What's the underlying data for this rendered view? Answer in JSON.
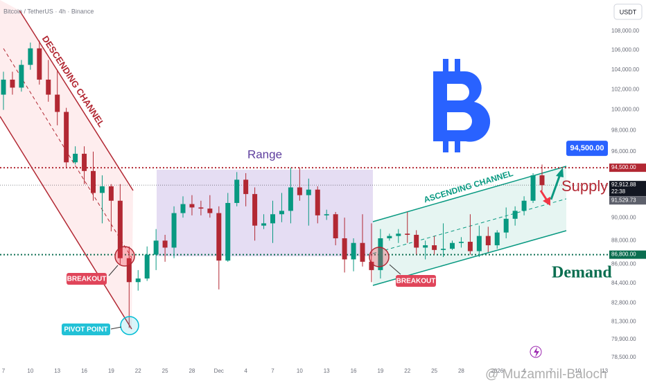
{
  "chart_data": {
    "type": "candlestick",
    "title": "Bitcoin / TetherUS · 4h · Binance",
    "currency": "USDT",
    "log_scale": true,
    "grid": false,
    "up_color": "#089981",
    "down_color": "#b22833",
    "ylim": [
      77760,
      111340
    ],
    "yticks": [
      {
        "value": 108000,
        "label": "108,000.00"
      },
      {
        "value": 106000,
        "label": "106,000.00"
      },
      {
        "value": 104000,
        "label": "104,000.00"
      },
      {
        "value": 102000,
        "label": "102,000.00"
      },
      {
        "value": 100000,
        "label": "100,000.00"
      },
      {
        "value": 98000,
        "label": "98,000.00"
      },
      {
        "value": 96000,
        "label": "96,000.00"
      },
      {
        "value": 90000,
        "label": "90,000.00"
      },
      {
        "value": 88000,
        "label": "88,000.00"
      },
      {
        "value": 86000,
        "label": "86,000.00"
      },
      {
        "value": 84400,
        "label": "84,400.00"
      },
      {
        "value": 82800,
        "label": "82,800.00"
      },
      {
        "value": 81300,
        "label": "81,300.00"
      },
      {
        "value": 79900,
        "label": "79,900.00"
      },
      {
        "value": 78500,
        "label": "78,500.00"
      }
    ],
    "xticks": [
      {
        "value": 0,
        "label": "7"
      },
      {
        "value": 3,
        "label": "10"
      },
      {
        "value": 6,
        "label": "13"
      },
      {
        "value": 9,
        "label": "16"
      },
      {
        "value": 12,
        "label": "19"
      },
      {
        "value": 15,
        "label": "22"
      },
      {
        "value": 18,
        "label": "25"
      },
      {
        "value": 21,
        "label": "28"
      },
      {
        "value": 24,
        "label": "Dec"
      },
      {
        "value": 27,
        "label": "4"
      },
      {
        "value": 30,
        "label": "7"
      },
      {
        "value": 33,
        "label": "10"
      },
      {
        "value": 36,
        "label": "13"
      },
      {
        "value": 39,
        "label": "16"
      },
      {
        "value": 42,
        "label": "19"
      },
      {
        "value": 45,
        "label": "22"
      },
      {
        "value": 48,
        "label": "25"
      },
      {
        "value": 51,
        "label": "28"
      },
      {
        "value": 55,
        "label": "2026"
      },
      {
        "value": 58,
        "label": "4"
      },
      {
        "value": 61,
        "label": "7"
      },
      {
        "value": 64,
        "label": "10"
      },
      {
        "value": 67,
        "label": "13"
      }
    ],
    "open": [
      101500,
      103000,
      102200,
      104500,
      106200,
      103000,
      101500,
      99800,
      95000,
      95800,
      94200,
      92200,
      92800,
      91500,
      86500,
      84500,
      84800,
      86800,
      88000,
      87400,
      90400,
      91200,
      90900,
      90800,
      90400,
      86300,
      91300,
      93400,
      92100,
      89300,
      89500,
      90300,
      90600,
      92700,
      92000,
      92500,
      90200,
      90300,
      88200,
      86400,
      87800,
      86200,
      85500,
      88200,
      88400,
      88600,
      88500,
      87400,
      87600,
      87200,
      87300,
      87800,
      87900,
      87100,
      88400,
      87600,
      88700,
      89900,
      90600,
      91500,
      93800
    ],
    "high": [
      103800,
      103800,
      105000,
      106800,
      107000,
      105000,
      104000,
      100200,
      96500,
      96500,
      96000,
      93800,
      93000,
      93000,
      87500,
      85500,
      87500,
      89000,
      88500,
      91000,
      91900,
      92000,
      91500,
      92000,
      91000,
      92200,
      94100,
      94000,
      92700,
      90300,
      91500,
      92200,
      94500,
      94500,
      93500,
      92800,
      90700,
      90500,
      90000,
      88200,
      90300,
      89500,
      89000,
      88600,
      89000,
      90500,
      88900,
      88000,
      88400,
      89500,
      88000,
      88300,
      90300,
      89300,
      89200,
      88900,
      90900,
      91000,
      91900,
      94000,
      94800
    ],
    "low": [
      100000,
      101500,
      101800,
      104000,
      102500,
      100800,
      98500,
      94500,
      94800,
      93000,
      91500,
      89500,
      88800,
      86000,
      80800,
      83800,
      84600,
      85500,
      86200,
      86500,
      90000,
      90200,
      90200,
      90000,
      83900,
      86200,
      91000,
      91000,
      88000,
      89000,
      87800,
      89600,
      89500,
      91500,
      89300,
      89500,
      89800,
      87600,
      85300,
      85400,
      85800,
      84500,
      84800,
      88000,
      87800,
      87800,
      86800,
      86400,
      86800,
      86600,
      87200,
      87400,
      86800,
      86600,
      87000,
      87300,
      88200,
      89300,
      90200,
      91300,
      92400
    ],
    "close": [
      103000,
      102200,
      104500,
      106200,
      103000,
      101500,
      99800,
      95000,
      95800,
      94200,
      92200,
      92800,
      91500,
      86500,
      84500,
      84800,
      86800,
      88000,
      87400,
      90400,
      91200,
      90900,
      90800,
      90400,
      86300,
      91300,
      93400,
      92100,
      89300,
      89500,
      90300,
      90600,
      92700,
      92000,
      92500,
      90200,
      90300,
      88200,
      86400,
      87800,
      86200,
      85500,
      88200,
      88400,
      88600,
      88500,
      87400,
      87600,
      87200,
      87300,
      87800,
      87900,
      87100,
      88400,
      87600,
      88700,
      89900,
      90600,
      91500,
      93800,
      92900
    ],
    "price_tags": [
      {
        "value": 94500,
        "label": "94,500.00",
        "color": "#b22833",
        "line_style": "dotted-thick"
      },
      {
        "value": 92912.88,
        "label": "92,912.88",
        "color": "#131722",
        "line_style": "dotted-thin",
        "countdown": "22:38"
      },
      {
        "value": 91529.73,
        "label": "91,529.73",
        "color": "#5d606b",
        "line_style": "none"
      },
      {
        "value": 86800,
        "label": "86,800.00",
        "color": "#0b6e50",
        "line_style": "dotted-thick"
      }
    ],
    "target": {
      "value": 94500,
      "label": "94,500.00"
    },
    "annotations": {
      "descending_channel": "DESCENDING CHANNEL",
      "range": "Range",
      "ascending_channel": "ASCENDING CHANNEL",
      "breakout_1": "BREAKOUT",
      "breakout_2": "BREAKOUT",
      "pivot_point": "PIVOT POINT",
      "supply": "Supply",
      "demand": "Demand"
    },
    "watermark": "@ Muzammil-Baloch"
  }
}
